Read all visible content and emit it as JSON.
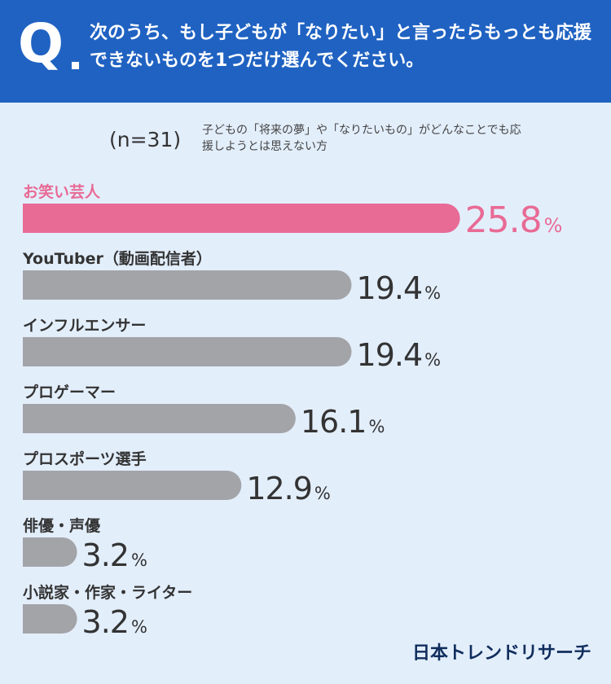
{
  "header": {
    "q_mark": "Q",
    "question": "次のうち、もし子どもが「なりたい」と言ったらもっとも応援できないものを1つだけ選んでください。"
  },
  "sample": "(n=31)",
  "subtitle": "子どもの「将来の夢」や「なりたいもの」がどんなことでも応援しようとは思えない方",
  "brand": "日本トレンドリサーチ",
  "colors": {
    "highlight": "#e86b95",
    "bar": "#a3a4a8",
    "header": "#1f62c2",
    "background": "#e3eefb"
  },
  "chart_data": {
    "type": "bar",
    "orientation": "horizontal",
    "unit": "%",
    "categories": [
      "お笑い芸人",
      "YouTuber（動画配信者）",
      "インフルエンサー",
      "プロゲーマー",
      "プロスポーツ選手",
      "俳優・声優",
      "小説家・作家・ライター"
    ],
    "values": [
      25.8,
      19.4,
      19.4,
      16.1,
      12.9,
      3.2,
      3.2
    ],
    "value_labels": [
      "25.8",
      "19.4",
      "19.4",
      "16.1",
      "12.9",
      "3.2",
      "3.2"
    ],
    "highlight_index": 0
  }
}
